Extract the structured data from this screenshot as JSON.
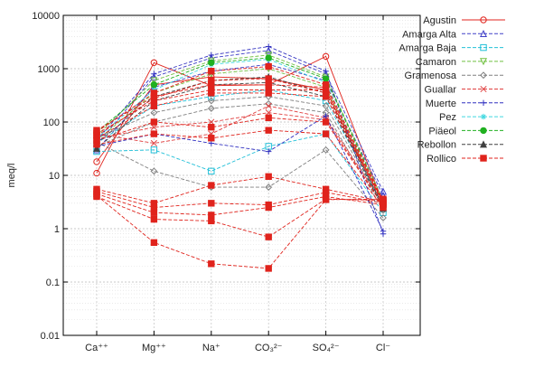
{
  "chart_data": {
    "type": "line",
    "ylabel": "meq/l",
    "xlabel": "",
    "title": "",
    "yscale": "log",
    "ylim": [
      0.01,
      10000
    ],
    "grid": true,
    "legend_position": "right",
    "categories": [
      "Ca⁺⁺",
      "Mg⁺⁺",
      "Na⁺",
      "CO₃²⁻",
      "SO₄²⁻",
      "Cl⁻"
    ],
    "y_ticks": [
      "10000",
      "1000",
      "100",
      "10",
      "1",
      "0.1",
      "0.01"
    ],
    "series": [
      {
        "name": "Agustin",
        "color": "#e0231c",
        "marker": "circle-open",
        "dash": "solid",
        "lines": [
          [
            11,
            1300,
            480,
            500,
            1700,
            3.0
          ],
          [
            18,
            500,
            700,
            650,
            400,
            2.6
          ]
        ]
      },
      {
        "name": "Amarga Alta",
        "color": "#4040c8",
        "marker": "triangle-open",
        "dash": "dashed",
        "lines": [
          [
            38,
            700,
            1600,
            2200,
            800,
            5.0
          ],
          [
            30,
            450,
            900,
            1200,
            600,
            4.2
          ]
        ]
      },
      {
        "name": "Amarga Baja",
        "color": "#22c0d8",
        "marker": "square-open",
        "dash": "dashed",
        "lines": [
          [
            28,
            30,
            12,
            35,
            60,
            2.0
          ],
          [
            40,
            200,
            300,
            400,
            250,
            2.8
          ]
        ]
      },
      {
        "name": "Camaron",
        "color": "#70c040",
        "marker": "triangle-down-open",
        "dash": "dashed",
        "lines": [
          [
            55,
            600,
            1400,
            1800,
            700,
            3.4
          ],
          [
            45,
            350,
            800,
            1000,
            450,
            3.0
          ]
        ]
      },
      {
        "name": "Gramenosa",
        "color": "#808080",
        "marker": "diamond-open",
        "dash": "dashed",
        "lines": [
          [
            42,
            12,
            6,
            6,
            30,
            1.6
          ],
          [
            50,
            150,
            250,
            300,
            200,
            2.5
          ],
          [
            35,
            100,
            180,
            220,
            150,
            2.2
          ]
        ]
      },
      {
        "name": "Guallar",
        "color": "#e04040",
        "marker": "x",
        "dash": "dashed",
        "lines": [
          [
            60,
            40,
            60,
            200,
            120,
            3.0
          ],
          [
            48,
            80,
            100,
            150,
            110,
            2.8
          ]
        ]
      },
      {
        "name": "Muerte",
        "color": "#3030c0",
        "marker": "plus",
        "dash": "dashed",
        "lines": [
          [
            45,
            800,
            1800,
            2600,
            900,
            0.8
          ],
          [
            35,
            60,
            40,
            28,
            130,
            0.9
          ]
        ]
      },
      {
        "name": "Pez",
        "color": "#40d8e0",
        "marker": "star",
        "dash": "dashed",
        "lines": [
          [
            50,
            400,
            1200,
            1500,
            550,
            2.4
          ]
        ]
      },
      {
        "name": "Piäeol",
        "color": "#20b020",
        "marker": "circle-filled",
        "dash": "dashed",
        "lines": [
          [
            65,
            500,
            1300,
            1600,
            650,
            3.2
          ]
        ]
      },
      {
        "name": "Rebollon",
        "color": "#404040",
        "marker": "triangle-filled",
        "dash": "dashed",
        "lines": [
          [
            40,
            300,
            600,
            700,
            350,
            2.6
          ],
          [
            32,
            250,
            500,
            550,
            300,
            2.4
          ]
        ]
      },
      {
        "name": "Rollico",
        "color": "#e0231c",
        "marker": "square-filled",
        "dash": "dashed",
        "lines": [
          [
            60,
            250,
            400,
            400,
            400,
            3.0
          ],
          [
            70,
            300,
            500,
            500,
            450,
            3.2
          ],
          [
            50,
            200,
            350,
            350,
            300,
            2.9
          ],
          [
            55,
            280,
            600,
            650,
            350,
            3.1
          ],
          [
            65,
            350,
            900,
            1100,
            500,
            3.4
          ],
          [
            45,
            100,
            80,
            120,
            100,
            2.7
          ],
          [
            38,
            60,
            50,
            70,
            60,
            2.5
          ],
          [
            5.5,
            3.0,
            6.5,
            9.5,
            5.5,
            3.2
          ],
          [
            5.0,
            2.5,
            3.0,
            2.8,
            4.8,
            3.0
          ],
          [
            4.5,
            2.0,
            1.8,
            2.5,
            4.0,
            2.8
          ],
          [
            4.0,
            1.5,
            1.4,
            0.7,
            3.6,
            3.4
          ],
          [
            4.2,
            0.55,
            0.22,
            0.18,
            3.5,
            3.6
          ]
        ]
      }
    ]
  }
}
